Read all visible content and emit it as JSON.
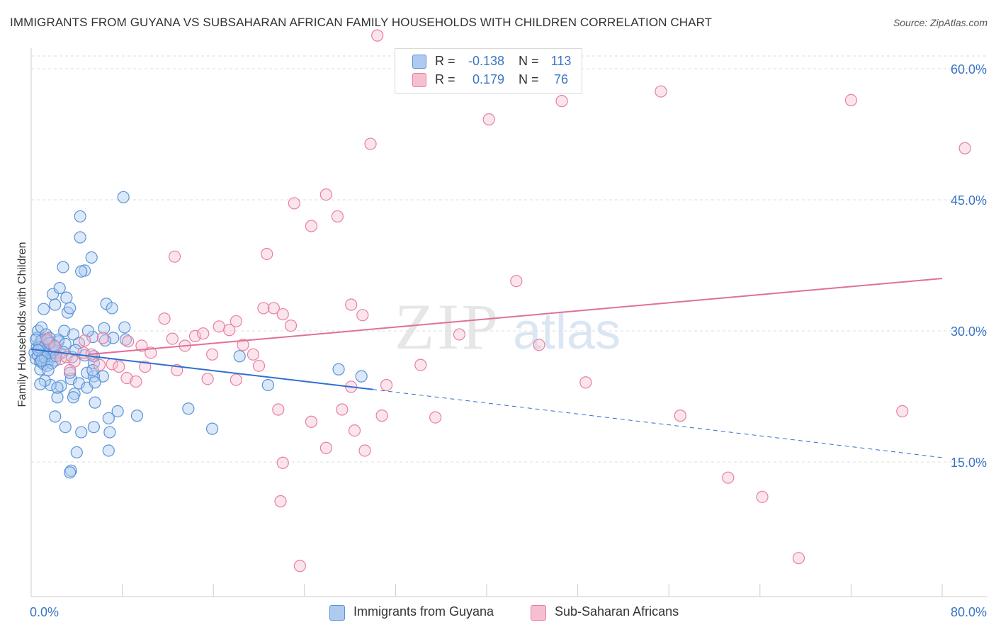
{
  "header": {
    "title": "IMMIGRANTS FROM GUYANA VS SUBSAHARAN AFRICAN FAMILY HOUSEHOLDS WITH CHILDREN CORRELATION CHART",
    "source": "Source: ZipAtlas.com"
  },
  "watermark": {
    "zip": "ZIP",
    "atlas": "atlas"
  },
  "legend_top": {
    "rows": [
      {
        "r_label": "R =",
        "r_value": "-0.138",
        "n_label": "N =",
        "n_value": "113"
      },
      {
        "r_label": "R =",
        "r_value": "0.179",
        "n_label": "N =",
        "n_value": "76"
      }
    ]
  },
  "colors": {
    "blue_fill": "#aecbef",
    "blue_stroke": "#5b93d8",
    "blue_line": "#2f6fd1",
    "pink_fill": "#f6bfd0",
    "pink_stroke": "#e87fa0",
    "pink_line": "#e07098",
    "tick_text": "#3a75c4",
    "grid": "#dddddd"
  },
  "chart_data": {
    "type": "scatter",
    "title": "IMMIGRANTS FROM GUYANA VS SUBSAHARAN AFRICAN FAMILY HOUSEHOLDS WITH CHILDREN CORRELATION CHART",
    "xlabel": "",
    "ylabel": "Family Households with Children",
    "xlim": [
      0,
      80
    ],
    "ylim": [
      0,
      60
    ],
    "x_tick_labels": [
      "0.0%",
      "80.0%"
    ],
    "y_ticks": [
      15,
      30,
      45,
      60
    ],
    "y_tick_labels": [
      "15.0%",
      "30.0%",
      "45.0%",
      "60.0%"
    ],
    "grid": true,
    "legend_placement": "bottom",
    "series": [
      {
        "name": "Immigrants from Guyana",
        "r": -0.138,
        "n": 113,
        "trend": {
          "x": [
            0,
            30
          ],
          "y": [
            27.9,
            23.3
          ],
          "dashed_to": [
            80,
            15.5
          ]
        },
        "points": [
          [
            0.3,
            27.5
          ],
          [
            0.4,
            26.8
          ],
          [
            0.5,
            28.1
          ],
          [
            0.6,
            27.2
          ],
          [
            0.7,
            28.5
          ],
          [
            0.8,
            26.5
          ],
          [
            0.9,
            27.9
          ],
          [
            1.0,
            27.0
          ],
          [
            1.1,
            28.3
          ],
          [
            1.2,
            26.9
          ],
          [
            1.3,
            27.6
          ],
          [
            1.4,
            28.0
          ],
          [
            1.5,
            27.3
          ],
          [
            1.6,
            26.7
          ],
          [
            1.7,
            27.8
          ],
          [
            1.8,
            28.4
          ],
          [
            1.9,
            27.1
          ],
          [
            2.0,
            27.5
          ],
          [
            2.1,
            26.6
          ],
          [
            2.2,
            28.0
          ],
          [
            0.5,
            29.2
          ],
          [
            0.6,
            30.0
          ],
          [
            0.9,
            30.4
          ],
          [
            1.0,
            29.0
          ],
          [
            1.3,
            29.6
          ],
          [
            2.4,
            28.8
          ],
          [
            2.6,
            27.4
          ],
          [
            0.8,
            25.6
          ],
          [
            1.1,
            26.2
          ],
          [
            1.4,
            26.0
          ],
          [
            3.2,
            32.1
          ],
          [
            1.9,
            34.2
          ],
          [
            2.5,
            34.9
          ],
          [
            3.1,
            33.8
          ],
          [
            4.3,
            40.7
          ],
          [
            2.8,
            37.3
          ],
          [
            4.7,
            36.9
          ],
          [
            4.3,
            43.1
          ],
          [
            8.1,
            45.3
          ],
          [
            5.3,
            38.4
          ],
          [
            3.4,
            32.6
          ],
          [
            1.1,
            32.5
          ],
          [
            2.1,
            33.0
          ],
          [
            4.4,
            36.8
          ],
          [
            6.6,
            33.1
          ],
          [
            7.1,
            32.6
          ],
          [
            6.4,
            30.3
          ],
          [
            7.2,
            29.2
          ],
          [
            5.4,
            29.3
          ],
          [
            4.2,
            28.6
          ],
          [
            5.0,
            30.0
          ],
          [
            3.7,
            29.6
          ],
          [
            2.4,
            29.0
          ],
          [
            1.6,
            29.2
          ],
          [
            3.0,
            28.5
          ],
          [
            4.7,
            27.2
          ],
          [
            6.5,
            28.9
          ],
          [
            8.3,
            29.0
          ],
          [
            8.2,
            30.4
          ],
          [
            5.5,
            27.1
          ],
          [
            2.6,
            23.7
          ],
          [
            3.5,
            24.5
          ],
          [
            4.2,
            24.0
          ],
          [
            3.8,
            22.8
          ],
          [
            4.9,
            25.2
          ],
          [
            5.5,
            26.3
          ],
          [
            6.3,
            24.8
          ],
          [
            5.5,
            24.8
          ],
          [
            3.4,
            25.2
          ],
          [
            2.3,
            22.4
          ],
          [
            3.7,
            22.4
          ],
          [
            2.1,
            20.2
          ],
          [
            3.0,
            19.0
          ],
          [
            4.4,
            18.4
          ],
          [
            5.5,
            19.0
          ],
          [
            6.9,
            18.4
          ],
          [
            5.6,
            21.8
          ],
          [
            6.8,
            20.0
          ],
          [
            7.6,
            20.8
          ],
          [
            9.3,
            20.3
          ],
          [
            4.0,
            16.1
          ],
          [
            6.8,
            16.3
          ],
          [
            3.5,
            14.0
          ],
          [
            3.4,
            13.8
          ],
          [
            13.8,
            21.1
          ],
          [
            15.9,
            18.8
          ],
          [
            18.3,
            27.1
          ],
          [
            20.8,
            23.8
          ],
          [
            27.0,
            25.6
          ],
          [
            29.0,
            24.8
          ],
          [
            1.7,
            23.8
          ],
          [
            2.3,
            23.5
          ],
          [
            4.9,
            23.5
          ],
          [
            5.4,
            25.5
          ],
          [
            5.6,
            24.1
          ],
          [
            0.9,
            28.9
          ],
          [
            1.2,
            27.0
          ],
          [
            2.8,
            27.6
          ],
          [
            1.4,
            28.9
          ],
          [
            0.7,
            28.1
          ],
          [
            0.9,
            26.6
          ],
          [
            1.8,
            26.3
          ],
          [
            1.5,
            25.5
          ],
          [
            3.6,
            27.0
          ],
          [
            2.0,
            28.3
          ],
          [
            1.2,
            24.3
          ],
          [
            0.8,
            23.9
          ],
          [
            2.9,
            30.0
          ],
          [
            1.6,
            28.6
          ],
          [
            0.4,
            29.0
          ],
          [
            0.6,
            27.8
          ],
          [
            2.2,
            27.1
          ],
          [
            3.9,
            27.8
          ]
        ]
      },
      {
        "name": "Sub-Saharan Africans",
        "r": 0.179,
        "n": 76,
        "trend": {
          "x": [
            5,
            80
          ],
          "y": [
            27.3,
            36.0
          ]
        },
        "points": [
          [
            1.4,
            29.1
          ],
          [
            2.1,
            28.2
          ],
          [
            2.6,
            26.8
          ],
          [
            3.1,
            27.0
          ],
          [
            3.8,
            26.5
          ],
          [
            4.6,
            27.5
          ],
          [
            5.3,
            27.3
          ],
          [
            6.3,
            29.2
          ],
          [
            7.1,
            26.2
          ],
          [
            7.7,
            25.9
          ],
          [
            8.5,
            28.8
          ],
          [
            9.7,
            28.3
          ],
          [
            10.5,
            27.5
          ],
          [
            11.7,
            31.4
          ],
          [
            12.4,
            29.1
          ],
          [
            13.5,
            28.3
          ],
          [
            14.4,
            29.4
          ],
          [
            15.1,
            29.7
          ],
          [
            15.9,
            27.3
          ],
          [
            16.5,
            30.5
          ],
          [
            17.4,
            30.1
          ],
          [
            18.0,
            31.1
          ],
          [
            18.6,
            28.4
          ],
          [
            19.5,
            27.3
          ],
          [
            20.4,
            32.6
          ],
          [
            21.3,
            32.6
          ],
          [
            22.1,
            31.9
          ],
          [
            22.8,
            30.6
          ],
          [
            12.6,
            38.5
          ],
          [
            20.7,
            38.8
          ],
          [
            23.1,
            44.6
          ],
          [
            24.6,
            42.0
          ],
          [
            25.9,
            45.6
          ],
          [
            26.9,
            43.1
          ],
          [
            28.1,
            33.0
          ],
          [
            29.1,
            31.8
          ],
          [
            31.2,
            23.8
          ],
          [
            34.2,
            26.1
          ],
          [
            37.6,
            29.6
          ],
          [
            42.6,
            35.7
          ],
          [
            44.6,
            28.4
          ],
          [
            48.7,
            24.1
          ],
          [
            57.0,
            20.3
          ],
          [
            61.2,
            13.2
          ],
          [
            64.2,
            11.0
          ],
          [
            67.4,
            4.0
          ],
          [
            27.3,
            21.0
          ],
          [
            28.4,
            18.6
          ],
          [
            28.1,
            23.6
          ],
          [
            21.7,
            21.0
          ],
          [
            24.6,
            19.6
          ],
          [
            25.9,
            16.6
          ],
          [
            29.3,
            16.3
          ],
          [
            22.1,
            14.9
          ],
          [
            30.8,
            20.3
          ],
          [
            35.5,
            20.1
          ],
          [
            21.9,
            10.5
          ],
          [
            23.6,
            3.1
          ],
          [
            29.8,
            51.4
          ],
          [
            30.4,
            63.8
          ],
          [
            40.2,
            54.2
          ],
          [
            46.6,
            56.3
          ],
          [
            55.3,
            57.4
          ],
          [
            72.0,
            56.4
          ],
          [
            82.0,
            50.9
          ],
          [
            76.5,
            20.8
          ],
          [
            3.4,
            25.5
          ],
          [
            8.4,
            24.6
          ],
          [
            10.0,
            25.9
          ],
          [
            12.8,
            25.5
          ],
          [
            15.5,
            24.5
          ],
          [
            18.0,
            24.4
          ],
          [
            20.0,
            26.0
          ],
          [
            6.0,
            26.1
          ],
          [
            4.7,
            28.9
          ],
          [
            9.2,
            24.2
          ]
        ]
      }
    ]
  },
  "legend_bottom": {
    "items": [
      {
        "label": "Immigrants from Guyana"
      },
      {
        "label": "Sub-Saharan Africans"
      }
    ]
  }
}
